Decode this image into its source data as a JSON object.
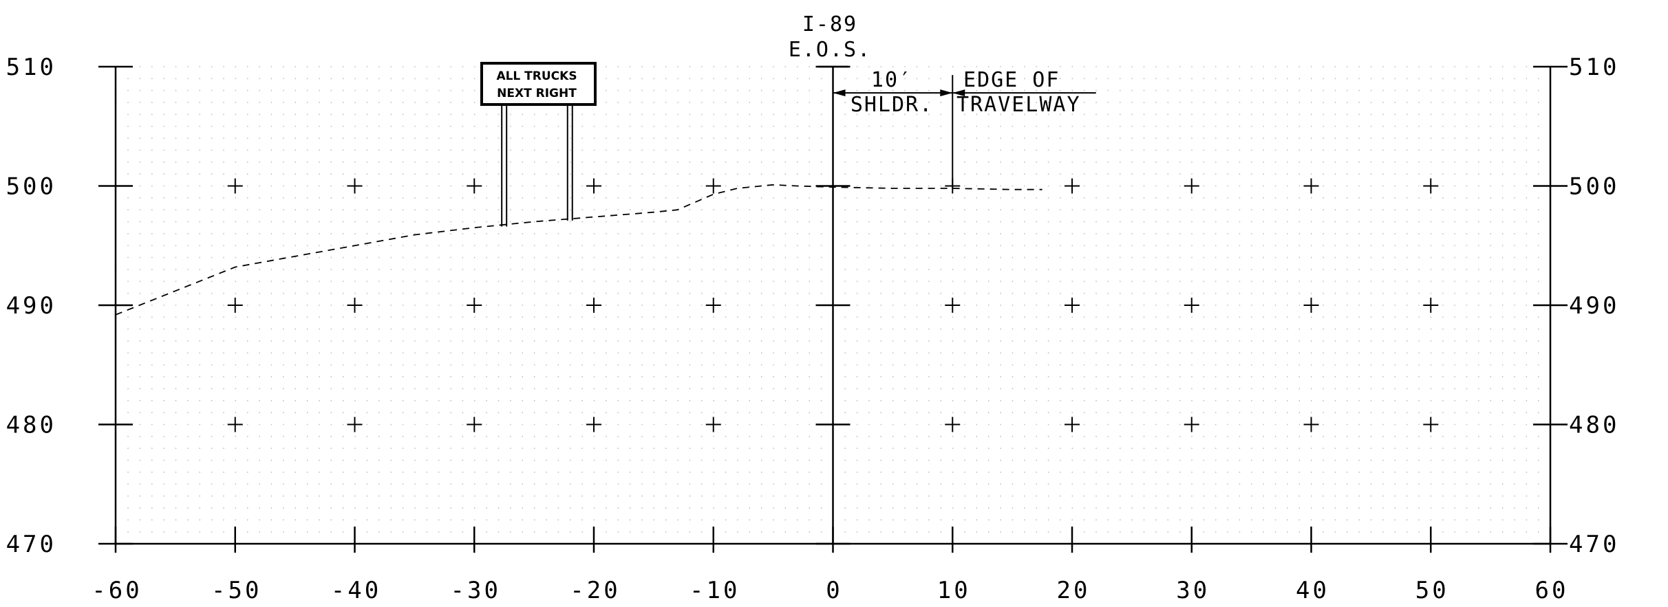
{
  "chart_data": {
    "type": "line",
    "title": "",
    "xlabel": "",
    "ylabel": "",
    "xlim": [
      -60,
      60
    ],
    "ylim": [
      470,
      510
    ],
    "x_ticks": [
      "-60",
      "-50",
      "-40",
      "-30",
      "-20",
      "-10",
      "0",
      "10",
      "20",
      "30",
      "40",
      "50",
      "60"
    ],
    "y_ticks": [
      "470",
      "480",
      "490",
      "500",
      "510"
    ],
    "grid": "dotted",
    "series": [
      {
        "style": "dashed",
        "x": [
          -60,
          -58,
          -50,
          -45,
          -40,
          -35,
          -30,
          -25,
          -20,
          -15,
          -13,
          -10,
          -8,
          -5,
          -3,
          0,
          5,
          10,
          15,
          17.5
        ],
        "y": [
          489.2,
          490.0,
          493.2,
          494.1,
          495.0,
          495.9,
          496.5,
          497.0,
          497.4,
          497.8,
          498.0,
          499.3,
          499.8,
          500.1,
          500.0,
          499.9,
          499.8,
          499.8,
          499.7,
          499.7
        ]
      }
    ],
    "annotations": {
      "eos_line1": "I-89",
      "eos_line2": "E.O.S.",
      "dim_top": "10′",
      "dim_bottom": "SHLDR.",
      "edge_line1": "EDGE OF",
      "edge_line2": "TRAVELWAY",
      "sign_line1": "ALL TRUCKS",
      "sign_line2": "NEXT RIGHT"
    },
    "sign_posts_x": [
      -27.5,
      -22
    ],
    "sign_post_base_y": [
      496.6,
      497.1
    ]
  }
}
